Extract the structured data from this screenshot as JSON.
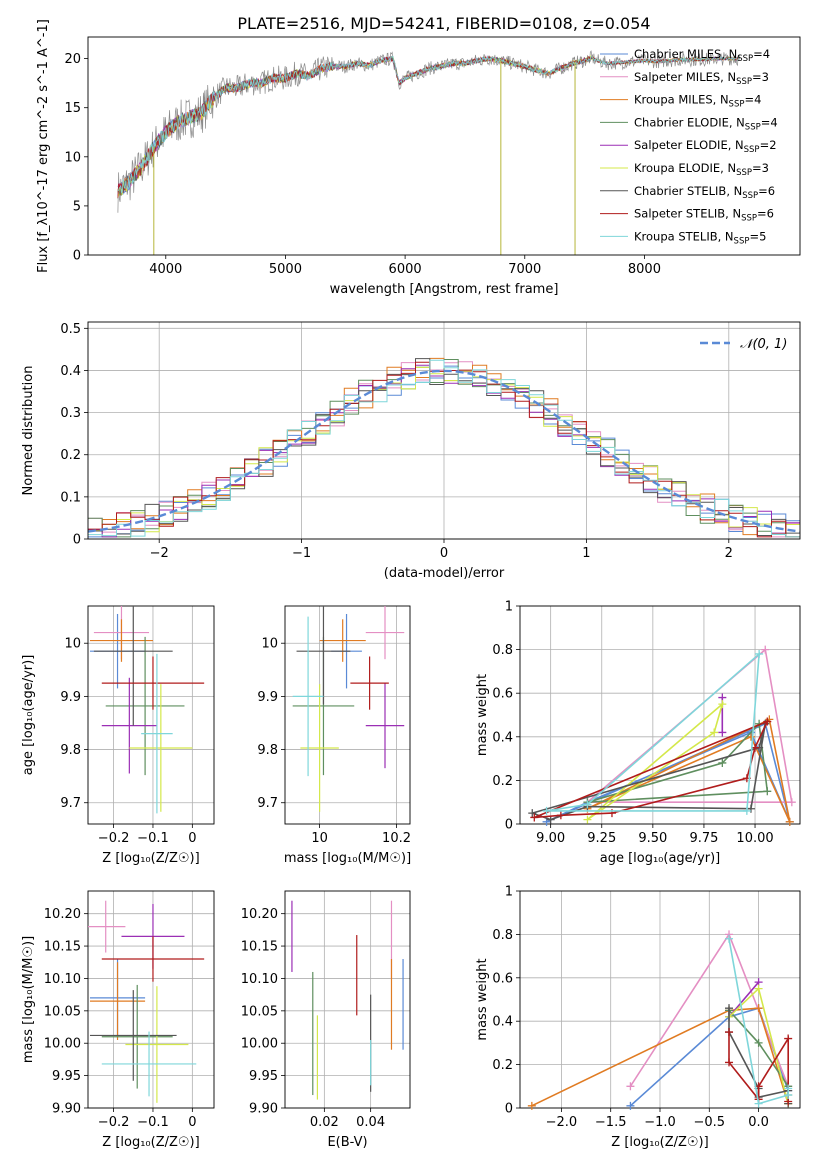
{
  "title": "PLATE=2516, MJD=54241, FIBERID=0108, z=0.054",
  "colors": {
    "chabrier_miles": "#5a8ad6",
    "salpeter_miles": "#e48fc3",
    "kroupa_miles": "#e07b22",
    "chabrier_elodie": "#5f8f5f",
    "salpeter_elodie": "#9b2fb5",
    "kroupa_elodie": "#d4e84a",
    "chabrier_stelib": "#555555",
    "salpeter_stelib": "#b01c1c",
    "kroupa_stelib": "#7fd6da",
    "spectrum_data": "#777777",
    "normal_curve": "#5a8ad6"
  },
  "chart_data": [
    {
      "id": "spectrum",
      "type": "line",
      "xlabel": "wavelength [Angstrom, rest frame]",
      "ylabel": "Flux [f_λ10^-17 erg cm^-2 s^-1 A^-1]",
      "xlim": [
        3350,
        9300
      ],
      "ylim": [
        0,
        22.2
      ],
      "xticks": [
        4000,
        5000,
        6000,
        7000,
        8000
      ],
      "yticks": [
        0,
        5,
        10,
        15,
        20
      ],
      "grid": false,
      "legend_position": "right",
      "legend": [
        {
          "label": "Chabrier MILES, N",
          "sub": "SSP",
          "tail": "=4",
          "color": "#5a8ad6"
        },
        {
          "label": "Salpeter MILES, N",
          "sub": "SSP",
          "tail": "=3",
          "color": "#e48fc3"
        },
        {
          "label": "Kroupa MILES, N",
          "sub": "SSP",
          "tail": "=4",
          "color": "#e07b22"
        },
        {
          "label": "Chabrier ELODIE, N",
          "sub": "SSP",
          "tail": "=4",
          "color": "#5f8f5f"
        },
        {
          "label": "Salpeter ELODIE, N",
          "sub": "SSP",
          "tail": "=2",
          "color": "#9b2fb5"
        },
        {
          "label": "Kroupa ELODIE, N",
          "sub": "SSP",
          "tail": "=3",
          "color": "#d4e84a"
        },
        {
          "label": "Chabrier STELIB, N",
          "sub": "SSP",
          "tail": "=6",
          "color": "#555555"
        },
        {
          "label": "Salpeter STELIB, N",
          "sub": "SSP",
          "tail": "=6",
          "color": "#b01c1c"
        },
        {
          "label": "Kroupa STELIB, N",
          "sub": "SSP",
          "tail": "=5",
          "color": "#7fd6da"
        }
      ],
      "envelope": [
        [
          3600,
          6.5
        ],
        [
          3700,
          7.5
        ],
        [
          3800,
          9
        ],
        [
          3900,
          11
        ],
        [
          4000,
          12.5
        ],
        [
          4100,
          13.5
        ],
        [
          4200,
          14
        ],
        [
          4300,
          14.5
        ],
        [
          4400,
          16
        ],
        [
          4500,
          17
        ],
        [
          4600,
          17
        ],
        [
          4700,
          17.5
        ],
        [
          4800,
          17.5
        ],
        [
          4900,
          18
        ],
        [
          5000,
          18
        ],
        [
          5100,
          18.5
        ],
        [
          5200,
          18.2
        ],
        [
          5300,
          19
        ],
        [
          5400,
          19.2
        ],
        [
          5500,
          19.2
        ],
        [
          5600,
          19.5
        ],
        [
          5700,
          19.3
        ],
        [
          5800,
          19.8
        ],
        [
          5900,
          20
        ],
        [
          5950,
          17.5
        ],
        [
          6000,
          18
        ],
        [
          6100,
          18.5
        ],
        [
          6200,
          19
        ],
        [
          6300,
          19.2
        ],
        [
          6400,
          19.5
        ],
        [
          6500,
          19.5
        ],
        [
          6600,
          19.8
        ],
        [
          6700,
          20
        ],
        [
          6800,
          19.8
        ],
        [
          6900,
          19.5
        ],
        [
          7000,
          19.2
        ],
        [
          7100,
          18.8
        ],
        [
          7200,
          18.5
        ],
        [
          7300,
          19
        ],
        [
          7400,
          19.5
        ],
        [
          7500,
          19.8
        ],
        [
          7560,
          20.1
        ],
        [
          7600,
          19.8
        ],
        [
          7700,
          19.5
        ],
        [
          7800,
          19.6
        ],
        [
          7900,
          19.7
        ],
        [
          8000,
          19.8
        ],
        [
          8100,
          19.7
        ],
        [
          8200,
          19.8
        ],
        [
          8300,
          19.9
        ],
        [
          8400,
          19.9
        ],
        [
          8500,
          19.9
        ],
        [
          8600,
          20
        ],
        [
          8700,
          20
        ],
        [
          8800,
          20
        ]
      ],
      "spikes": [
        [
          3900,
          0
        ],
        [
          6800,
          0
        ],
        [
          7420,
          0
        ]
      ]
    },
    {
      "id": "residuals",
      "type": "area",
      "xlabel": "(data-model)/error",
      "ylabel": "Normed distribution",
      "xlim": [
        -2.5,
        2.5
      ],
      "ylim": [
        0,
        0.515
      ],
      "xticks": [
        -2,
        -1,
        0,
        1,
        2
      ],
      "yticks": [
        0.0,
        0.1,
        0.2,
        0.3,
        0.4,
        0.5
      ],
      "grid": true,
      "legend_position": "upper right",
      "legend_label": "𝒩(0, 1)",
      "bin_width": 0.1,
      "bin_start": -2.5
    },
    {
      "id": "age_vs_Z",
      "type": "scatter",
      "xlabel": "Z [log₁₀(Z/Z☉)]",
      "ylabel": "age  [log₁₀(age/yr)]",
      "xlim": [
        -0.265,
        0.055
      ],
      "ylim": [
        9.66,
        10.07
      ],
      "xticks": [
        -0.2,
        -0.1,
        0.0
      ],
      "yticks": [
        9.7,
        9.8,
        9.9,
        10.0
      ],
      "grid": true,
      "points": [
        {
          "x": -0.19,
          "y": 9.985,
          "xerr": 0.07,
          "yerr": 0.07,
          "c": "chabrier_miles"
        },
        {
          "x": -0.18,
          "y": 10.02,
          "xerr": 0.07,
          "yerr": 0.05,
          "c": "salpeter_miles"
        },
        {
          "x": -0.18,
          "y": 10.005,
          "xerr": 0.08,
          "yerr": 0.04,
          "c": "kroupa_miles"
        },
        {
          "x": -0.12,
          "y": 9.882,
          "xerr": 0.1,
          "yerr": 0.13,
          "c": "chabrier_elodie"
        },
        {
          "x": -0.16,
          "y": 9.845,
          "xerr": 0.07,
          "yerr": 0.09,
          "c": "salpeter_elodie"
        },
        {
          "x": -0.08,
          "y": 9.803,
          "xerr": 0.08,
          "yerr": 0.12,
          "c": "kroupa_elodie"
        },
        {
          "x": -0.15,
          "y": 9.985,
          "xerr": 0.1,
          "yerr": 0.14,
          "c": "chabrier_stelib"
        },
        {
          "x": -0.1,
          "y": 9.925,
          "xerr": 0.13,
          "yerr": 0.05,
          "c": "salpeter_stelib"
        },
        {
          "x": -0.09,
          "y": 9.83,
          "xerr": 0.04,
          "yerr": 0.15,
          "c": "kroupa_stelib"
        }
      ]
    },
    {
      "id": "age_vs_mass",
      "type": "scatter",
      "xlabel": "mass [log₁₀(M/M☉)]",
      "ylabel": "",
      "xlim": [
        9.91,
        10.235
      ],
      "ylim": [
        9.66,
        10.07
      ],
      "xticks": [
        10.0,
        10.2
      ],
      "yticks": [
        9.7,
        9.8,
        9.9,
        10.0
      ],
      "grid": true,
      "points": [
        {
          "x": 10.07,
          "y": 9.985,
          "xerr": 0.04,
          "yerr": 0.07,
          "c": "chabrier_miles"
        },
        {
          "x": 10.17,
          "y": 10.02,
          "xerr": 0.05,
          "yerr": 0.05,
          "c": "salpeter_miles"
        },
        {
          "x": 10.06,
          "y": 10.005,
          "xerr": 0.06,
          "yerr": 0.04,
          "c": "kroupa_miles"
        },
        {
          "x": 10.01,
          "y": 9.882,
          "xerr": 0.08,
          "yerr": 0.13,
          "c": "chabrier_elodie"
        },
        {
          "x": 10.17,
          "y": 9.845,
          "xerr": 0.05,
          "yerr": 0.08,
          "c": "salpeter_elodie"
        },
        {
          "x": 10.0,
          "y": 9.803,
          "xerr": 0.05,
          "yerr": 0.12,
          "c": "kroupa_elodie"
        },
        {
          "x": 10.01,
          "y": 9.985,
          "xerr": 0.07,
          "yerr": 0.1,
          "c": "chabrier_stelib"
        },
        {
          "x": 10.13,
          "y": 9.925,
          "xerr": 0.05,
          "yerr": 0.05,
          "c": "salpeter_stelib"
        },
        {
          "x": 9.97,
          "y": 9.9,
          "xerr": 0.04,
          "yerr": 0.15,
          "c": "kroupa_stelib"
        }
      ]
    },
    {
      "id": "weight_vs_age",
      "type": "line",
      "xlabel": "age  [log₁₀(age/yr)]",
      "ylabel": "mass weight",
      "xlim": [
        8.85,
        10.22
      ],
      "ylim": [
        0.0,
        1.0
      ],
      "xticks": [
        9.0,
        9.25,
        9.5,
        9.75,
        10.0
      ],
      "xticklabels": [
        "9.00",
        "9.25",
        "9.50",
        "9.75",
        "10.00"
      ],
      "yticks": [
        0.0,
        0.2,
        0.4,
        0.6,
        0.8,
        1.0
      ],
      "grid": true,
      "series": [
        {
          "c": "chabrier_miles",
          "x": [
            8.98,
            9.18,
            9.98,
            10.05,
            10.17
          ],
          "y": [
            0.01,
            0.1,
            0.42,
            0.46,
            0.01
          ],
          "order": [
            0,
            3,
            4,
            2,
            1,
            0
          ]
        },
        {
          "c": "salpeter_miles",
          "x": [
            9.18,
            10.05,
            10.18
          ],
          "y": [
            0.1,
            0.8,
            0.1
          ],
          "order": [
            0,
            1,
            2,
            0
          ]
        },
        {
          "c": "kroupa_miles",
          "x": [
            9.18,
            9.98,
            10.07,
            10.17
          ],
          "y": [
            0.07,
            0.4,
            0.48,
            0.01
          ],
          "order": [
            0,
            2,
            3,
            1,
            0
          ]
        },
        {
          "c": "chabrier_elodie",
          "x": [
            9.18,
            9.84,
            10.02,
            10.06
          ],
          "y": [
            0.1,
            0.28,
            0.46,
            0.15
          ],
          "order": [
            0,
            1,
            2,
            3,
            0
          ]
        },
        {
          "c": "salpeter_elodie",
          "x": [
            9.84,
            9.84
          ],
          "y": [
            0.42,
            0.58
          ],
          "order": [
            0,
            1
          ]
        },
        {
          "c": "kroupa_elodie",
          "x": [
            9.18,
            9.8,
            9.84
          ],
          "y": [
            0.02,
            0.42,
            0.55
          ],
          "order": [
            0,
            1,
            2,
            0
          ]
        },
        {
          "c": "chabrier_stelib",
          "x": [
            8.91,
            9.0,
            9.18,
            9.98,
            10.02,
            10.05
          ],
          "y": [
            0.05,
            0.02,
            0.08,
            0.07,
            0.35,
            0.46
          ],
          "order": [
            0,
            1,
            2,
            3,
            5,
            4,
            0
          ]
        },
        {
          "c": "salpeter_stelib",
          "x": [
            8.92,
            9.05,
            9.3,
            9.96,
            10.0,
            10.06
          ],
          "y": [
            0.03,
            0.04,
            0.05,
            0.21,
            0.35,
            0.47
          ],
          "order": [
            0,
            1,
            2,
            3,
            4,
            5,
            0
          ]
        },
        {
          "c": "kroupa_stelib",
          "x": [
            8.98,
            9.18,
            9.96,
            10.02
          ],
          "y": [
            0.06,
            0.09,
            0.06,
            0.78
          ],
          "order": [
            0,
            2,
            3,
            1,
            0
          ]
        }
      ]
    },
    {
      "id": "mass_vs_Z",
      "type": "scatter",
      "xlabel": "Z [log₁₀(Z/Z☉)]",
      "ylabel": "mass [log₁₀(M/M☉)]",
      "xlim": [
        -0.265,
        0.055
      ],
      "ylim": [
        9.9,
        10.235
      ],
      "xticks": [
        -0.2,
        -0.1,
        0.0
      ],
      "yticks": [
        9.9,
        9.95,
        10.0,
        10.05,
        10.1,
        10.15,
        10.2
      ],
      "yticklabels": [
        "9.90",
        "9.95",
        "10.00",
        "10.05",
        "10.10",
        "10.15",
        "10.20"
      ],
      "grid": true,
      "points": [
        {
          "x": -0.19,
          "y": 10.07,
          "xerr": 0.07,
          "yerr": 0.06,
          "c": "chabrier_miles"
        },
        {
          "x": -0.22,
          "y": 10.18,
          "xerr": 0.05,
          "yerr": 0.04,
          "c": "salpeter_miles"
        },
        {
          "x": -0.19,
          "y": 10.065,
          "xerr": 0.07,
          "yerr": 0.06,
          "c": "kroupa_miles"
        },
        {
          "x": -0.14,
          "y": 10.01,
          "xerr": 0.09,
          "yerr": 0.08,
          "c": "chabrier_elodie"
        },
        {
          "x": -0.1,
          "y": 10.165,
          "xerr": 0.08,
          "yerr": 0.05,
          "c": "salpeter_elodie"
        },
        {
          "x": -0.09,
          "y": 9.998,
          "xerr": 0.08,
          "yerr": 0.09,
          "c": "kroupa_elodie"
        },
        {
          "x": -0.15,
          "y": 10.012,
          "xerr": 0.11,
          "yerr": 0.07,
          "c": "chabrier_stelib"
        },
        {
          "x": -0.1,
          "y": 10.13,
          "xerr": 0.13,
          "yerr": 0.035,
          "c": "salpeter_stelib"
        },
        {
          "x": -0.11,
          "y": 9.968,
          "xerr": 0.12,
          "yerr": 0.05,
          "c": "kroupa_stelib"
        }
      ]
    },
    {
      "id": "mass_vs_ebv",
      "type": "scatter",
      "xlabel": "E(B-V)",
      "ylabel": "",
      "xlim": [
        0.003,
        0.057
      ],
      "ylim": [
        9.9,
        10.235
      ],
      "xticks": [
        0.02,
        0.04
      ],
      "xticklabels": [
        "0.02",
        "0.04"
      ],
      "yticks": [
        9.9,
        9.95,
        10.0,
        10.05,
        10.1,
        10.15,
        10.2
      ],
      "yticklabels": [
        "9.90",
        "9.95",
        "10.00",
        "10.05",
        "10.10",
        "10.15",
        "10.20"
      ],
      "grid": true,
      "points": [
        {
          "x": 0.054,
          "y": 10.06,
          "yerr": 0.07,
          "c": "chabrier_miles"
        },
        {
          "x": 0.049,
          "y": 10.16,
          "yerr": 0.06,
          "c": "salpeter_miles"
        },
        {
          "x": 0.049,
          "y": 10.06,
          "yerr": 0.07,
          "c": "kroupa_miles"
        },
        {
          "x": 0.015,
          "y": 10.015,
          "yerr": 0.095,
          "c": "chabrier_elodie"
        },
        {
          "x": 0.006,
          "y": 10.165,
          "yerr": 0.055,
          "c": "salpeter_elodie"
        },
        {
          "x": 0.017,
          "y": 9.978,
          "yerr": 0.065,
          "c": "kroupa_elodie"
        },
        {
          "x": 0.04,
          "y": 10.0,
          "yerr": 0.075,
          "c": "chabrier_stelib"
        },
        {
          "x": 0.034,
          "y": 10.105,
          "yerr": 0.062,
          "c": "salpeter_stelib"
        },
        {
          "x": 0.04,
          "y": 9.97,
          "yerr": 0.035,
          "c": "kroupa_stelib"
        }
      ]
    },
    {
      "id": "weight_vs_Z",
      "type": "line",
      "xlabel": "Z [log₁₀(Z/Z☉)]",
      "ylabel": "mass weight",
      "xlim": [
        -2.42,
        0.42
      ],
      "ylim": [
        0.0,
        1.0
      ],
      "xticks": [
        -2.0,
        -1.5,
        -1.0,
        -0.5,
        0.0
      ],
      "xticklabels": [
        "−2.0",
        "−1.5",
        "−1.0",
        "−0.5",
        "0.0"
      ],
      "yticks": [
        0.0,
        0.2,
        0.4,
        0.6,
        0.8,
        1.0
      ],
      "grid": true,
      "series": [
        {
          "c": "chabrier_miles",
          "x": [
            -1.3,
            -0.3,
            0.0,
            0.3
          ],
          "y": [
            0.01,
            0.42,
            0.46,
            0.08
          ]
        },
        {
          "c": "salpeter_miles",
          "x": [
            -1.3,
            -0.3,
            0.3
          ],
          "y": [
            0.1,
            0.8,
            0.1
          ]
        },
        {
          "c": "kroupa_miles",
          "x": [
            -2.3,
            -0.3,
            0.0,
            0.3
          ],
          "y": [
            0.01,
            0.45,
            0.46,
            0.02
          ]
        },
        {
          "c": "chabrier_elodie",
          "x": [
            -0.3,
            0.0,
            0.3,
            0.3
          ],
          "y": [
            0.45,
            0.3,
            0.1,
            0.06
          ]
        },
        {
          "c": "salpeter_elodie",
          "x": [
            -0.3,
            0.0
          ],
          "y": [
            0.42,
            0.58
          ]
        },
        {
          "c": "kroupa_elodie",
          "x": [
            -0.3,
            0.0,
            0.3
          ],
          "y": [
            0.42,
            0.55,
            0.02
          ]
        },
        {
          "c": "chabrier_stelib",
          "x": [
            -0.3,
            -0.3,
            0.0,
            0.0,
            0.3,
            0.3
          ],
          "y": [
            0.46,
            0.35,
            0.09,
            0.05,
            0.08,
            0.02
          ]
        },
        {
          "c": "salpeter_stelib",
          "x": [
            -0.3,
            -0.3,
            0.0,
            0.0,
            0.3,
            0.3
          ],
          "y": [
            0.35,
            0.21,
            0.04,
            0.1,
            0.32,
            0.03
          ]
        },
        {
          "c": "kroupa_stelib",
          "x": [
            -0.3,
            0.0,
            0.3,
            0.3
          ],
          "y": [
            0.78,
            0.02,
            0.06,
            0.09
          ]
        }
      ]
    }
  ]
}
